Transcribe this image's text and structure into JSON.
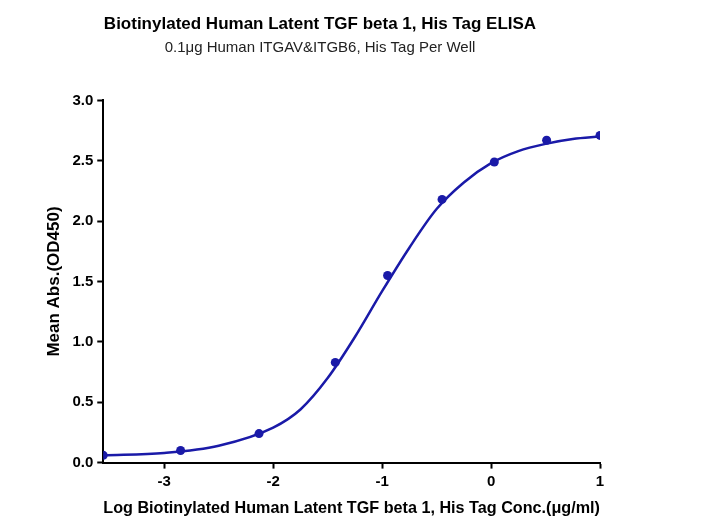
{
  "chart_data": {
    "type": "scatter",
    "title": "Biotinylated Human Latent TGF beta 1, His Tag ELISA",
    "subtitle": "0.1μg Human ITGAV&ITGB6, His Tag Per Well",
    "x_label": "Log Biotinylated Human Latent TGF beta 1, His Tag Conc.(μg/ml)",
    "y_label": "Mean Abs.(OD450)",
    "xlim": [
      -3.56,
      1.0
    ],
    "xticks": [
      -3,
      -2,
      -1,
      0,
      1
    ],
    "ylim": [
      0,
      3
    ],
    "yticks": [
      {
        "value": 0,
        "label": "0.0"
      },
      0.5,
      {
        "value": 1,
        "label": "1.0"
      },
      1.5,
      {
        "value": 2,
        "label": "2.0"
      },
      2.5,
      {
        "value": 3,
        "label": "3.0"
      }
    ],
    "grid": false,
    "series": [
      {
        "type": "scatter",
        "color": "#1a1aa8",
        "marker": "circle",
        "x": [
          -3.56,
          -2.85,
          -2.13,
          -1.43,
          -0.95,
          -0.45,
          0.03,
          0.51,
          1.0
        ],
        "values": [
          0.06,
          0.1,
          0.24,
          0.83,
          1.55,
          2.18,
          2.49,
          2.67,
          2.71
        ]
      },
      {
        "type": "line",
        "color": "#1a1aa8",
        "line_style": "solid",
        "x": [
          -3.56,
          -3.0,
          -2.5,
          -2.0,
          -1.75,
          -1.5,
          -1.25,
          -1.0,
          -0.75,
          -0.5,
          -0.25,
          0.0,
          0.25,
          0.5,
          0.75,
          1.0
        ],
        "values": [
          0.06,
          0.08,
          0.14,
          0.29,
          0.44,
          0.7,
          1.04,
          1.42,
          1.78,
          2.1,
          2.32,
          2.48,
          2.58,
          2.64,
          2.68,
          2.7
        ]
      }
    ]
  }
}
